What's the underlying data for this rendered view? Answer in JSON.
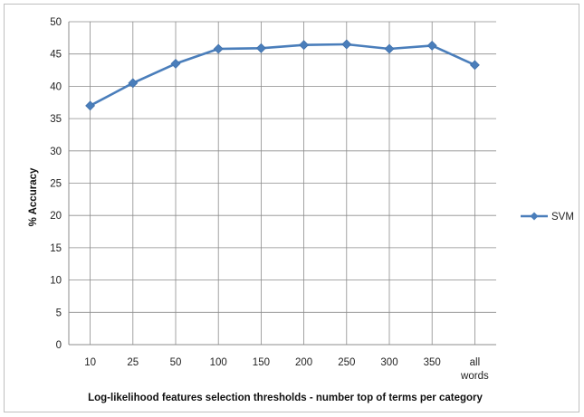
{
  "chart_data": {
    "type": "line",
    "categories": [
      "10",
      "25",
      "50",
      "100",
      "150",
      "200",
      "250",
      "300",
      "350",
      "all words"
    ],
    "series": [
      {
        "name": "SVM",
        "values": [
          37.0,
          40.5,
          43.5,
          45.8,
          45.9,
          46.4,
          46.5,
          45.8,
          46.3,
          43.3
        ],
        "color": "#4a7ebb"
      }
    ],
    "title": "",
    "xlabel": "Log-likelihood features selection thresholds - number top of terms per category",
    "ylabel": "% Accuracy",
    "ylim": [
      0,
      50
    ],
    "yticks": [
      0,
      5,
      10,
      15,
      20,
      25,
      30,
      35,
      40,
      45,
      50
    ],
    "grid": "horizontal-and-vertical",
    "legend_position": "right"
  }
}
